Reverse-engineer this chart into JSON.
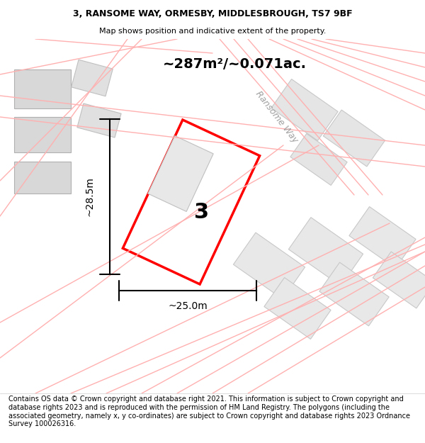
{
  "title": "3, RANSOME WAY, ORMESBY, MIDDLESBROUGH, TS7 9BF",
  "subtitle": "Map shows position and indicative extent of the property.",
  "area_label": "~287m²/~0.071ac.",
  "property_number": "3",
  "dim_width": "~25.0m",
  "dim_height": "~28.5m",
  "road_label": "Ransome Way",
  "footer_text": "Contains OS data © Crown copyright and database right 2021. This information is subject to Crown copyright and database rights 2023 and is reproduced with the permission of HM Land Registry. The polygons (including the associated geometry, namely x, y co-ordinates) are subject to Crown copyright and database rights 2023 Ordnance Survey 100026316.",
  "bg_color": "#f5f0f0",
  "map_bg_color": "#ffffff",
  "plot_color": "#ff0000",
  "building_fill": "#e8e8e8",
  "building_edge": "#c0c0c0",
  "road_line_color": "#ffb0b0",
  "title_fontsize": 9,
  "subtitle_fontsize": 8,
  "footer_fontsize": 7
}
